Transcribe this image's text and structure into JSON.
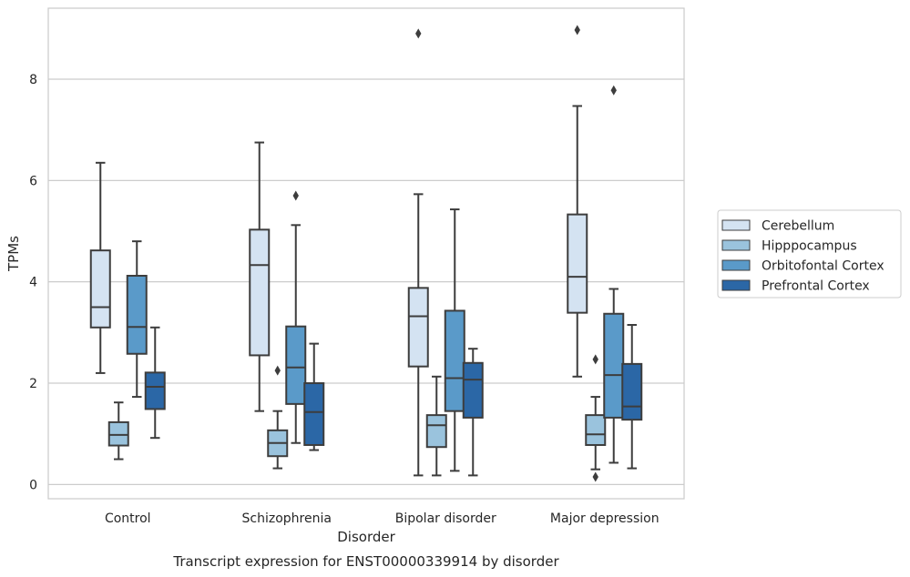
{
  "chart_data": {
    "type": "boxplot",
    "caption": "Transcript expression for ENST00000339914 by disorder",
    "xlabel": "Disorder",
    "ylabel": "TPMs",
    "ylim": [
      -0.28,
      9.4
    ],
    "yticks": [
      0,
      2,
      4,
      6,
      8
    ],
    "grid": "horizontal",
    "legend_position": "right",
    "categories": [
      "Control",
      "Schizophrenia",
      "Bipolar disorder",
      "Major depression"
    ],
    "series": [
      {
        "name": "Cerebellum",
        "color": "#d4e3f2",
        "boxes": [
          {
            "whisker_low": 2.2,
            "q1": 3.1,
            "median": 3.5,
            "q3": 4.62,
            "whisker_high": 6.35,
            "outliers": []
          },
          {
            "whisker_low": 1.45,
            "q1": 2.55,
            "median": 4.33,
            "q3": 5.03,
            "whisker_high": 6.75,
            "outliers": []
          },
          {
            "whisker_low": 0.18,
            "q1": 2.33,
            "median": 3.32,
            "q3": 3.88,
            "whisker_high": 5.73,
            "outliers": [
              8.9
            ]
          },
          {
            "whisker_low": 2.13,
            "q1": 3.39,
            "median": 4.1,
            "q3": 5.33,
            "whisker_high": 7.47,
            "outliers": [
              8.97
            ]
          }
        ]
      },
      {
        "name": "Hipppocampus",
        "color": "#9ac3dd",
        "boxes": [
          {
            "whisker_low": 0.5,
            "q1": 0.77,
            "median": 0.98,
            "q3": 1.23,
            "whisker_high": 1.62,
            "outliers": []
          },
          {
            "whisker_low": 0.32,
            "q1": 0.56,
            "median": 0.82,
            "q3": 1.07,
            "whisker_high": 1.45,
            "outliers": [
              2.25
            ]
          },
          {
            "whisker_low": 0.18,
            "q1": 0.74,
            "median": 1.17,
            "q3": 1.37,
            "whisker_high": 2.13,
            "outliers": []
          },
          {
            "whisker_low": 0.3,
            "q1": 0.78,
            "median": 0.99,
            "q3": 1.37,
            "whisker_high": 1.73,
            "outliers": [
              0.15,
              2.47
            ]
          }
        ]
      },
      {
        "name": "Orbitofontal Cortex",
        "color": "#5a9ac9",
        "boxes": [
          {
            "whisker_low": 1.73,
            "q1": 2.58,
            "median": 3.11,
            "q3": 4.12,
            "whisker_high": 4.8,
            "outliers": []
          },
          {
            "whisker_low": 0.82,
            "q1": 1.59,
            "median": 2.31,
            "q3": 3.12,
            "whisker_high": 5.12,
            "outliers": [
              5.7
            ]
          },
          {
            "whisker_low": 0.27,
            "q1": 1.45,
            "median": 2.1,
            "q3": 3.43,
            "whisker_high": 5.43,
            "outliers": []
          },
          {
            "whisker_low": 0.43,
            "q1": 1.32,
            "median": 2.16,
            "q3": 3.37,
            "whisker_high": 3.86,
            "outliers": [
              7.78
            ]
          }
        ]
      },
      {
        "name": "Prefrontal Cortex",
        "color": "#2b67a6",
        "boxes": [
          {
            "whisker_low": 0.92,
            "q1": 1.49,
            "median": 1.93,
            "q3": 2.21,
            "whisker_high": 3.1,
            "outliers": []
          },
          {
            "whisker_low": 0.68,
            "q1": 0.78,
            "median": 1.43,
            "q3": 2.0,
            "whisker_high": 2.78,
            "outliers": []
          },
          {
            "whisker_low": 0.18,
            "q1": 1.32,
            "median": 2.07,
            "q3": 2.4,
            "whisker_high": 2.68,
            "outliers": []
          },
          {
            "whisker_low": 0.32,
            "q1": 1.28,
            "median": 1.54,
            "q3": 2.38,
            "whisker_high": 3.15,
            "outliers": []
          }
        ]
      }
    ]
  }
}
